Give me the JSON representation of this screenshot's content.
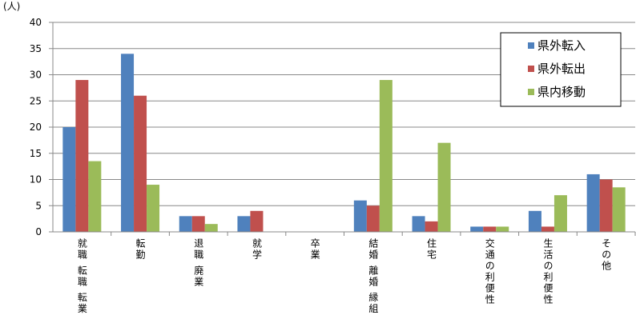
{
  "chart_data": {
    "type": "bar",
    "unit_label": "(人)",
    "categories": [
      "就職 転職 転業",
      "転勤",
      "退職 廃業",
      "就学",
      "卒業",
      "結婚 離婚 縁組",
      "住宅",
      "交通の利便性",
      "生活の利便性",
      "その他"
    ],
    "series": [
      {
        "name": "県外転入",
        "color": "#4f81bd",
        "values": [
          20,
          34,
          3,
          3,
          0,
          6,
          3,
          1,
          4,
          11
        ]
      },
      {
        "name": "県外転出",
        "color": "#c0504d",
        "values": [
          29,
          26,
          3,
          4,
          0,
          5,
          2,
          1,
          1,
          10
        ]
      },
      {
        "name": "県内移動",
        "color": "#9bbb59",
        "values": [
          13.5,
          9,
          1.5,
          0,
          0,
          29,
          17,
          1,
          7,
          8.5
        ]
      }
    ],
    "ylim": [
      0,
      40
    ],
    "yticks": [
      0,
      5,
      10,
      15,
      20,
      25,
      30,
      35,
      40
    ],
    "grid": true
  }
}
